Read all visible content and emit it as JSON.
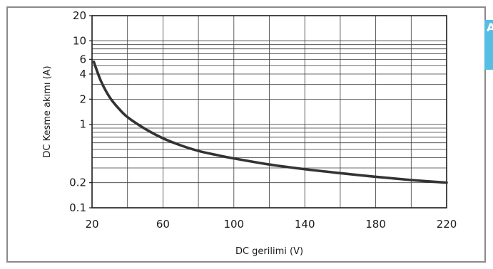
{
  "chart_data": {
    "type": "line",
    "xlabel": "DC gerilimi (V)",
    "ylabel": "DC Kesme akımı (A)",
    "xlim": [
      20,
      220
    ],
    "ylim": [
      0.1,
      20
    ],
    "y_scale": "log",
    "grid": true,
    "x_ticks": [
      20,
      60,
      100,
      140,
      180,
      220
    ],
    "x_tick_labels": [
      "20",
      "60",
      "100",
      "140",
      "180",
      "220"
    ],
    "y_ticks": [
      0.1,
      0.2,
      1,
      2,
      4,
      6,
      10,
      20
    ],
    "y_tick_labels": [
      "0.1",
      "0.2",
      "1",
      "2",
      "4",
      "6",
      "10",
      "20"
    ],
    "x_minor_grid": [
      20,
      40,
      60,
      80,
      100,
      120,
      140,
      160,
      180,
      200,
      220
    ],
    "y_minor_grid": [
      0.1,
      0.2,
      0.3,
      0.4,
      0.5,
      0.6,
      0.7,
      0.8,
      0.9,
      1,
      2,
      3,
      4,
      5,
      6,
      7,
      8,
      9,
      10,
      20
    ],
    "series": [
      {
        "color": "#333333",
        "points": [
          {
            "x": 21,
            "y": 5.6
          },
          {
            "x": 25,
            "y": 3.3
          },
          {
            "x": 30,
            "y": 2.1
          },
          {
            "x": 35,
            "y": 1.55
          },
          {
            "x": 40,
            "y": 1.22
          },
          {
            "x": 50,
            "y": 0.88
          },
          {
            "x": 60,
            "y": 0.68
          },
          {
            "x": 70,
            "y": 0.56
          },
          {
            "x": 80,
            "y": 0.48
          },
          {
            "x": 90,
            "y": 0.43
          },
          {
            "x": 100,
            "y": 0.39
          },
          {
            "x": 120,
            "y": 0.33
          },
          {
            "x": 140,
            "y": 0.29
          },
          {
            "x": 160,
            "y": 0.26
          },
          {
            "x": 180,
            "y": 0.235
          },
          {
            "x": 200,
            "y": 0.215
          },
          {
            "x": 220,
            "y": 0.2
          }
        ]
      }
    ]
  },
  "edge_tab": {
    "color": "#56bde3",
    "visible_text": "A"
  }
}
